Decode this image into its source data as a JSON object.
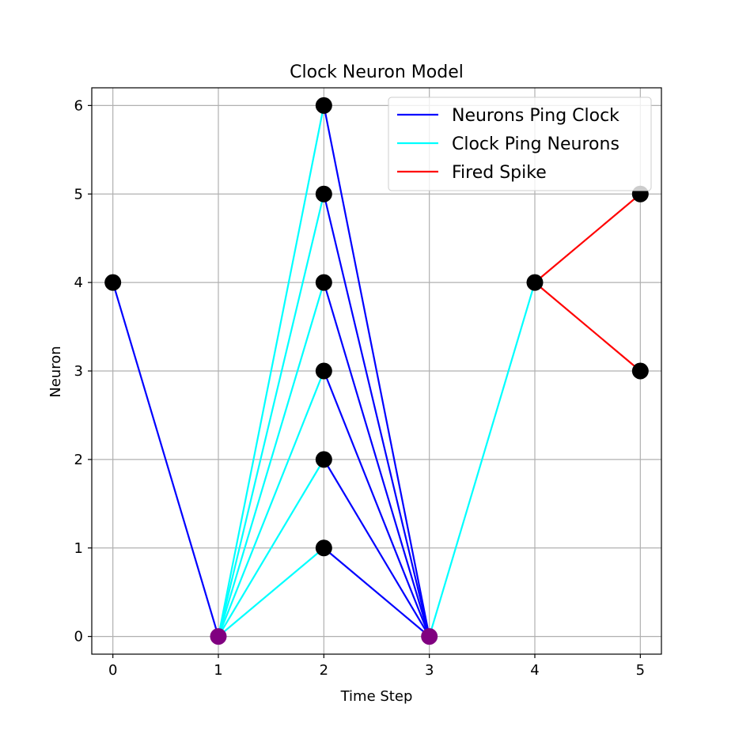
{
  "chart_data": {
    "type": "line",
    "title": "Clock Neuron Model",
    "xlabel": "Time Step",
    "ylabel": "Neuron",
    "xlim": [
      -0.2,
      5.2
    ],
    "ylim": [
      -0.2,
      6.2
    ],
    "xticks": [
      0,
      1,
      2,
      3,
      4,
      5
    ],
    "yticks": [
      0,
      1,
      2,
      3,
      4,
      5,
      6
    ],
    "grid": true,
    "legend_position": "top-right",
    "series": [
      {
        "name": "Neurons Ping Clock",
        "color": "#0000ff",
        "segments": [
          [
            [
              0,
              4
            ],
            [
              1,
              0
            ]
          ],
          [
            [
              2,
              1
            ],
            [
              3,
              0
            ]
          ],
          [
            [
              2,
              2
            ],
            [
              3,
              0
            ]
          ],
          [
            [
              2,
              3
            ],
            [
              3,
              0
            ]
          ],
          [
            [
              2,
              4
            ],
            [
              3,
              0
            ]
          ],
          [
            [
              2,
              5
            ],
            [
              3,
              0
            ]
          ],
          [
            [
              2,
              6
            ],
            [
              3,
              0
            ]
          ]
        ]
      },
      {
        "name": "Clock Ping Neurons",
        "color": "#00ffff",
        "segments": [
          [
            [
              1,
              0
            ],
            [
              2,
              1
            ]
          ],
          [
            [
              1,
              0
            ],
            [
              2,
              2
            ]
          ],
          [
            [
              1,
              0
            ],
            [
              2,
              3
            ]
          ],
          [
            [
              1,
              0
            ],
            [
              2,
              4
            ]
          ],
          [
            [
              1,
              0
            ],
            [
              2,
              5
            ]
          ],
          [
            [
              1,
              0
            ],
            [
              2,
              6
            ]
          ],
          [
            [
              3,
              0
            ],
            [
              4,
              4
            ]
          ]
        ]
      },
      {
        "name": "Fired Spike",
        "color": "#ff0000",
        "segments": [
          [
            [
              4,
              4
            ],
            [
              5,
              5
            ]
          ],
          [
            [
              4,
              4
            ],
            [
              5,
              3
            ]
          ]
        ]
      }
    ],
    "points": [
      {
        "x": 0,
        "y": 4,
        "color": "#000000"
      },
      {
        "x": 1,
        "y": 0,
        "color": "#800080"
      },
      {
        "x": 2,
        "y": 1,
        "color": "#000000"
      },
      {
        "x": 2,
        "y": 2,
        "color": "#000000"
      },
      {
        "x": 2,
        "y": 3,
        "color": "#000000"
      },
      {
        "x": 2,
        "y": 4,
        "color": "#000000"
      },
      {
        "x": 2,
        "y": 5,
        "color": "#000000"
      },
      {
        "x": 2,
        "y": 6,
        "color": "#000000"
      },
      {
        "x": 3,
        "y": 0,
        "color": "#800080"
      },
      {
        "x": 4,
        "y": 4,
        "color": "#000000"
      },
      {
        "x": 5,
        "y": 5,
        "color": "#000000"
      },
      {
        "x": 5,
        "y": 3,
        "color": "#000000"
      }
    ]
  }
}
